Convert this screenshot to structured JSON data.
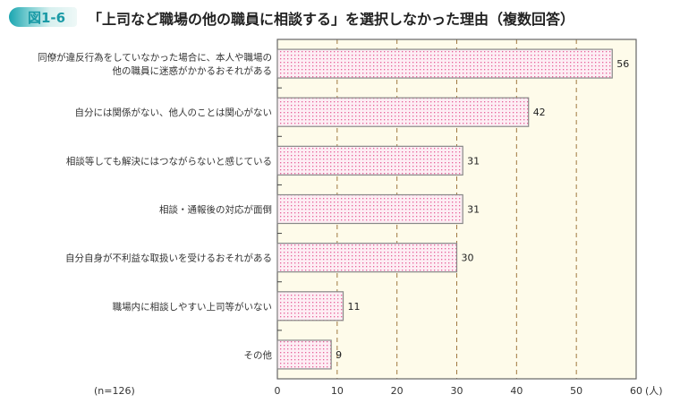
{
  "figure_label": "図1-6",
  "title": "「上司など職場の他の職員に相談する」を選択しなかった理由（複数回答）",
  "chart_data": {
    "type": "bar",
    "orientation": "horizontal",
    "categories": [
      [
        "同僚が違反行為をしていなかった場合に、本人や職場の",
        "他の職員に迷惑がかかるおそれがある"
      ],
      [
        "自分には関係がない、他人のことは関心がない"
      ],
      [
        "相談等しても解決にはつながらないと感じている"
      ],
      [
        "相談・通報後の対応が面倒"
      ],
      [
        "自分自身が不利益な取扱いを受けるおそれがある"
      ],
      [
        "職場内に相談しやすい上司等がいない"
      ],
      [
        "その他"
      ]
    ],
    "values": [
      56,
      42,
      31,
      31,
      30,
      11,
      9
    ],
    "xlim": [
      0,
      60
    ],
    "xticks": [
      0,
      10,
      20,
      30,
      40,
      50,
      60
    ],
    "xunit": "(人)",
    "note": "(n=126)",
    "grid": "vertical dashed",
    "colors": {
      "plot_bg": "#fefbea",
      "bar_fill": "#fdeef4",
      "bar_dots": "#e8609a",
      "bar_stroke": "#888888",
      "grid": "#a07840"
    }
  }
}
